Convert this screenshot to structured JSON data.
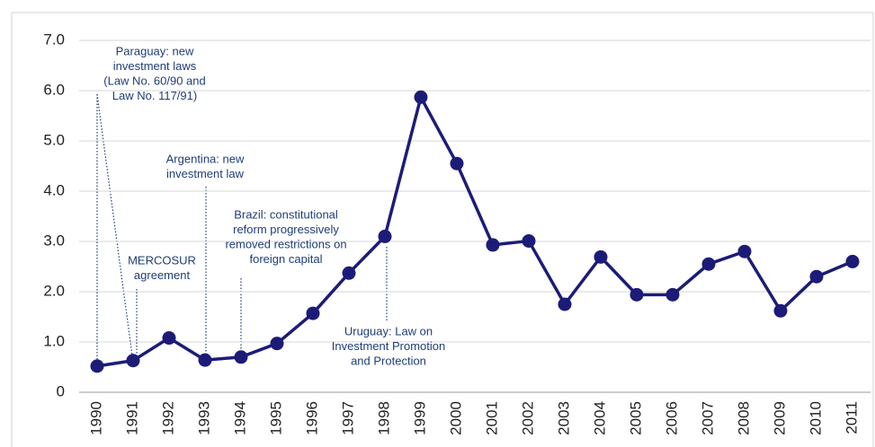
{
  "chart_data": {
    "type": "line",
    "categories": [
      "1990",
      "1991",
      "1992",
      "1993",
      "1994",
      "1995",
      "1996",
      "1997",
      "1998",
      "1999",
      "2000",
      "2001",
      "2002",
      "2003",
      "2004",
      "2005",
      "2006",
      "2007",
      "2008",
      "2009",
      "2010",
      "2011"
    ],
    "series": [
      {
        "color": "#1c1c78",
        "values": [
          0.52,
          0.63,
          1.08,
          0.64,
          0.7,
          0.97,
          1.57,
          2.37,
          3.1,
          5.87,
          4.55,
          2.93,
          3.01,
          1.75,
          2.69,
          1.94,
          1.94,
          2.55,
          2.8,
          1.62,
          2.3,
          2.6
        ]
      }
    ],
    "ylim": [
      0,
      7
    ],
    "yticks": [
      0,
      {
        "value": 1,
        "label": "1.0"
      },
      {
        "value": 2,
        "label": "2.0"
      },
      {
        "value": 3,
        "label": "3.0"
      },
      {
        "value": 4,
        "label": "4.0"
      },
      {
        "value": 5,
        "label": "5.0"
      },
      {
        "value": 6,
        "label": "6.0"
      },
      {
        "value": 7,
        "label": "7.0"
      }
    ],
    "grid": true,
    "annotations": [
      {
        "lines": [
          "Paraguay: new",
          "investment laws",
          "(Law No. 60/90 and",
          "Law No. 117/91)"
        ]
      },
      {
        "lines": [
          "MERCOSUR",
          "agreement"
        ]
      },
      {
        "lines": [
          "Argentina: new",
          "investment law"
        ]
      },
      {
        "lines": [
          "Brazil: constitutional",
          "reform progressively",
          "removed restrictions on",
          "foreign capital"
        ]
      },
      {
        "lines": [
          "Uruguay: Law on",
          "Investment Promotion",
          "and Protection"
        ]
      }
    ]
  }
}
